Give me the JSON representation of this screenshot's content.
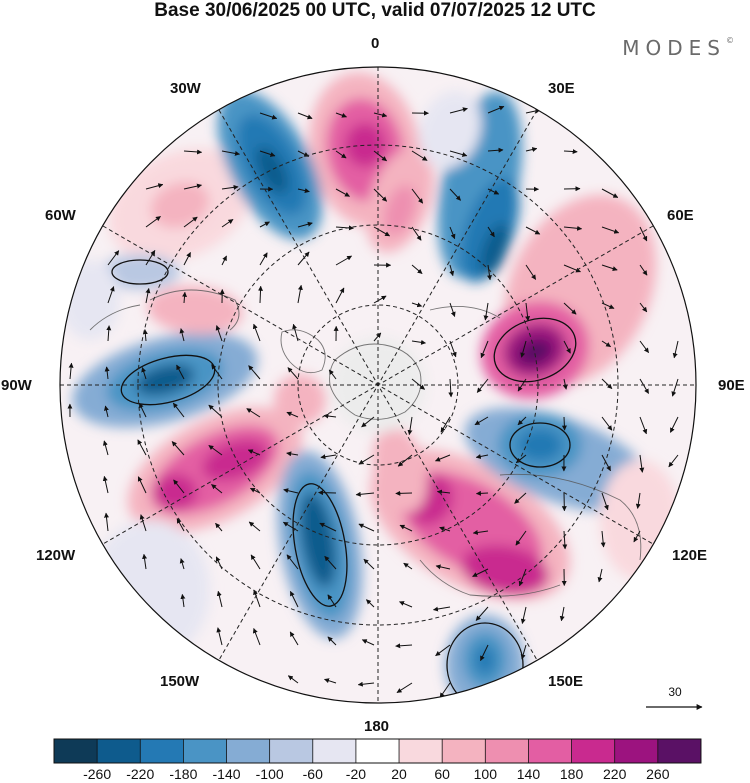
{
  "header": {
    "title": "Base 30/06/2025 00 UTC, valid 07/07/2025 12 UTC",
    "brand": "MODES",
    "brand_mark": "©"
  },
  "map": {
    "longitude_labels": {
      "n0": "0",
      "n30e": "30E",
      "n60e": "60E",
      "n90e": "90E",
      "n120e": "120E",
      "n150e": "150E",
      "n180": "180",
      "n150w": "150W",
      "n120w": "120W",
      "n90w": "90W",
      "n60w": "60W",
      "n30w": "30W"
    },
    "reference_vector_label": "30"
  },
  "colorbar": {
    "colors": [
      "#0e3a57",
      "#0e5b8d",
      "#2479b4",
      "#4a94c5",
      "#85acd4",
      "#b9c8e2",
      "#e6e6f2",
      "#ffffff",
      "#f9d9de",
      "#f4b3c0",
      "#ee8fb0",
      "#e35ea3",
      "#c92a8f",
      "#9c137f",
      "#5a1165"
    ],
    "tick_labels": [
      "-260",
      "-220",
      "-180",
      "-140",
      "-100",
      "-60",
      "-20",
      "20",
      "60",
      "100",
      "140",
      "180",
      "220",
      "260"
    ]
  }
}
